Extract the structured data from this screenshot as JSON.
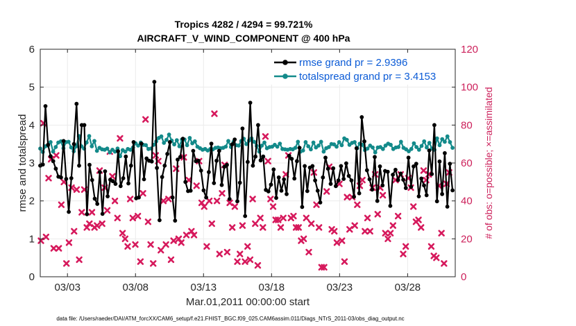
{
  "chart_data": {
    "type": "line",
    "title_line1": "Tropics 4282 / 4294 = 99.721%",
    "title_line2": "AIRCRAFT_V_WIND_COMPONENT @ 400 hPa",
    "xlabel": "Mar.01,2011 00:00:00 start",
    "ylabel": "rmse and totalspread",
    "ylabel_right": "# of obs: o=possible; ×=assimilated",
    "xlim": [
      0,
      30.5
    ],
    "ylim": [
      0,
      6
    ],
    "ylim_right": [
      0,
      120
    ],
    "x_ticks": [
      {
        "x": 2,
        "label": "03/03"
      },
      {
        "x": 7,
        "label": "03/08"
      },
      {
        "x": 12,
        "label": "03/13"
      },
      {
        "x": 17,
        "label": "03/18"
      },
      {
        "x": 22,
        "label": "03/23"
      },
      {
        "x": 27,
        "label": "03/28"
      }
    ],
    "y_ticks": [
      "0",
      "1",
      "2",
      "3",
      "4",
      "5",
      "6"
    ],
    "y_ticks_right": [
      "0",
      "20",
      "40",
      "60",
      "80",
      "100",
      "120"
    ],
    "step_days": 0.25,
    "colors": {
      "rmse": "#000000",
      "spread": "#138a8a",
      "obs": "#d6195c",
      "legend_text": "#0b5bd6",
      "right_axis": "#cc1f5a"
    },
    "footer": "data file: /Users/raeder/DAI/ATM_forcXX/CAM6_setup/f.e21.FHIST_BGC.f09_025.CAM6assim.011/Diags_NTrS_2011-03/obs_diag_output.nc",
    "series": [
      {
        "name": "rmse grand pr = 2.9396",
        "axis": "left",
        "values": [
          2.93,
          2.96,
          4.5,
          3.48,
          3.18,
          3.05,
          2.85,
          2.64,
          2.62,
          3.58,
          2.58,
          1.71,
          2.6,
          3.5,
          4.56,
          2.93,
          4.0,
          4.0,
          1.65,
          2.95,
          2.55,
          2.06,
          1.92,
          2.76,
          1.66,
          2.78,
          2.12,
          2.56,
          2.52,
          2.45,
          3.31,
          2.39,
          2.6,
          3.17,
          2.46,
          2.93,
          3.55,
          2.07,
          2.09,
          3.51,
          2.57,
          3.12,
          3.06,
          3.04,
          5.14,
          2.87,
          1.49,
          2.63,
          2.93,
          3.24,
          3.55,
          2.09,
          1.48,
          3.09,
          3.16,
          3.64,
          2.5,
          2.26,
          2.27,
          3.32,
          3.05,
          3.06,
          2.8,
          2.28,
          2.09,
          2.76,
          3.51,
          2.47,
          3.06,
          3.32,
          2.42,
          2.9,
          2.95,
          2.05,
          3.49,
          3.62,
          1.99,
          2.48,
          3.91,
          1.6,
          3.03,
          4.59,
          2.93,
          3.17,
          4.0,
          3.07,
          3.17,
          2.29,
          2.25,
          2.43,
          2.83,
          2.08,
          2.62,
          2.27,
          2.57,
          2.18,
          3.19,
          3.11,
          2.59,
          3.05,
          3.4,
          1.84,
          2.92,
          2.26,
          2.88,
          2.92,
          2.54,
          2.27,
          1.96,
          2.62,
          3.14,
          2.85,
          2.45,
          2.86,
          2.39,
          2.54,
          2.92,
          2.58,
          2.99,
          2.66,
          2.54,
          2.11,
          3.39,
          2.2,
          4.21,
          3.57,
          2.81,
          2.57,
          2.3,
          3.16,
          2.0,
          2.91,
          2.41,
          2.79,
          2.77,
          1.87,
          2.69,
          2.82,
          2.55,
          2.72,
          2.56,
          2.34,
          3.14,
          2.37,
          2.91,
          2.98,
          2.12,
          2.59,
          2.41,
          2.15,
          3.33,
          2.71,
          4.0,
          1.99,
          3.04,
          2.18,
          3.26,
          1.85,
          2.98,
          2.28
        ]
      },
      {
        "name": "totalspread grand pr = 3.4153",
        "axis": "left",
        "values": [
          3.38,
          3.29,
          3.44,
          3.46,
          3.55,
          3.3,
          3.42,
          3.54,
          3.57,
          3.39,
          3.55,
          3.56,
          3.41,
          3.31,
          3.44,
          3.71,
          3.44,
          3.38,
          3.54,
          3.71,
          3.44,
          3.58,
          3.32,
          3.4,
          3.36,
          3.35,
          3.38,
          3.28,
          3.35,
          3.3,
          3.38,
          3.18,
          3.34,
          3.3,
          3.37,
          3.35,
          3.41,
          3.52,
          3.46,
          3.54,
          3.48,
          3.47,
          3.37,
          3.38,
          3.48,
          3.57,
          3.66,
          3.7,
          3.53,
          3.61,
          3.75,
          3.59,
          3.49,
          3.6,
          3.44,
          3.62,
          3.62,
          3.47,
          3.66,
          3.52,
          3.57,
          3.43,
          3.39,
          3.35,
          3.37,
          3.33,
          3.37,
          3.36,
          3.4,
          3.41,
          3.39,
          3.4,
          3.43,
          3.58,
          3.42,
          3.56,
          3.47,
          3.46,
          3.58,
          3.64,
          3.5,
          3.59,
          3.65,
          3.56,
          3.45,
          3.3,
          3.46,
          3.54,
          3.39,
          3.42,
          3.43,
          3.48,
          3.43,
          3.51,
          3.37,
          3.36,
          3.35,
          3.37,
          3.36,
          3.4,
          3.56,
          3.3,
          3.33,
          3.55,
          3.44,
          3.36,
          3.54,
          3.41,
          3.46,
          3.56,
          3.3,
          3.39,
          3.42,
          3.5,
          3.49,
          3.43,
          3.55,
          3.47,
          3.65,
          3.61,
          3.48,
          3.53,
          3.55,
          3.39,
          3.51,
          3.48,
          3.34,
          3.38,
          3.46,
          3.41,
          3.28,
          3.41,
          3.42,
          3.37,
          3.46,
          3.51,
          3.48,
          3.37,
          3.41,
          3.42,
          3.56,
          3.4,
          3.36,
          3.31,
          3.37,
          3.52,
          3.42,
          3.35,
          3.45,
          3.57,
          3.41,
          3.53,
          3.38,
          3.35,
          3.65,
          3.47,
          3.63,
          3.56,
          3.7,
          3.55,
          3.4
        ]
      },
      {
        "name": "obs assimilated",
        "axis": "right",
        "values": [
          19,
          81,
          21,
          52,
          62,
          15,
          64,
          15,
          38,
          50,
          7,
          18,
          47,
          24,
          46,
          9,
          34,
          46,
          26,
          28,
          34,
          26,
          27,
          56,
          28,
          47,
          35,
          66,
          53,
          40,
          31,
          73,
          23,
          20,
          16,
          41,
          31,
          17,
          32,
          8,
          44,
          83,
          29,
          17,
          7,
          64,
          61,
          14,
          40,
          17,
          41,
          9,
          19,
          57,
          20,
          18,
          63,
          22,
          51,
          24,
          22,
          48,
          61,
          39,
          37,
          16,
          40,
          28,
          86,
          40,
          12,
          44,
          59,
          13,
          39,
          26,
          37,
          8,
          12,
          27,
          8,
          16,
          9,
          41,
          28,
          6,
          31,
          26,
          74,
          61,
          41,
          37,
          30,
          30,
          26,
          31,
          54,
          64,
          31,
          32,
          26,
          26,
          19,
          20,
          31,
          13,
          28,
          55,
          38,
          26,
          5,
          5,
          45,
          58,
          25,
          24,
          18,
          49,
          19,
          8,
          42,
          25,
          42,
          27,
          38,
          48,
          51,
          24,
          31,
          24,
          47,
          54,
          33,
          47,
          43,
          23,
          20,
          23,
          27,
          51,
          32,
          54,
          12,
          16,
          52,
          47,
          37,
          29,
          30,
          26,
          56,
          51,
          54,
          16,
          11,
          10,
          48,
          23,
          7,
          49,
          55
        ]
      }
    ]
  }
}
